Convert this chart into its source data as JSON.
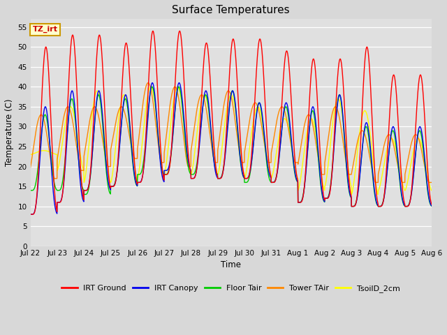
{
  "title": "Surface Temperatures",
  "ylabel": "Temperature (C)",
  "xlabel": "Time",
  "annotation": "TZ_irt",
  "ylim": [
    0,
    57
  ],
  "yticks": [
    0,
    5,
    10,
    15,
    20,
    25,
    30,
    35,
    40,
    45,
    50,
    55
  ],
  "fig_bg_color": "#d8d8d8",
  "plot_bg_color": "#e0e0e0",
  "legend": [
    {
      "label": "IRT Ground",
      "color": "#ff0000"
    },
    {
      "label": "IRT Canopy",
      "color": "#0000ee"
    },
    {
      "label": "Floor Tair",
      "color": "#00cc00"
    },
    {
      "label": "Tower TAir",
      "color": "#ff8800"
    },
    {
      "label": "TsoilD_2cm",
      "color": "#ffff00"
    }
  ],
  "num_days": 15,
  "tick_labels": [
    "Jul 22",
    "Jul 23",
    "Jul 24",
    "Jul 25",
    "Jul 26",
    "Jul 27",
    "Jul 28",
    "Jul 29",
    "Jul 30",
    "Jul 31",
    "Aug 1",
    "Aug 2",
    "Aug 3",
    "Aug 4",
    "Aug 5",
    "Aug 6"
  ],
  "irt_ground_peaks": [
    50,
    53,
    53,
    51,
    54,
    54,
    51,
    52,
    52,
    49,
    47,
    47,
    50,
    43,
    43
  ],
  "irt_ground_mins": [
    8,
    11,
    14,
    15,
    16,
    18,
    17,
    17,
    17,
    16,
    11,
    12,
    10,
    10,
    10
  ],
  "canopy_peaks": [
    35,
    39,
    39,
    38,
    41,
    41,
    39,
    39,
    36,
    36,
    35,
    38,
    31,
    30,
    30
  ],
  "canopy_mins": [
    8,
    11,
    14,
    15,
    16,
    19,
    17,
    17,
    17,
    16,
    11,
    12,
    10,
    10,
    10
  ],
  "floor_peaks": [
    33,
    37,
    38,
    37,
    40,
    40,
    38,
    39,
    36,
    35,
    34,
    38,
    30,
    29,
    29
  ],
  "floor_mins": [
    14,
    14,
    13,
    15,
    18,
    18,
    18,
    17,
    16,
    16,
    11,
    12,
    10,
    10,
    10
  ],
  "tower_peaks": [
    33,
    35,
    35,
    35,
    41,
    40,
    38,
    39,
    36,
    35,
    33,
    35,
    29,
    28,
    28
  ],
  "tower_mins": [
    17,
    19,
    20,
    22,
    21,
    20,
    21,
    21,
    21,
    21,
    18,
    18,
    16,
    16,
    16
  ],
  "soil_peaks": [
    24,
    35,
    39,
    38,
    40,
    40,
    38,
    38,
    35,
    32,
    32,
    37,
    34,
    27,
    27
  ],
  "soil_mins": [
    23,
    19,
    16,
    16,
    17,
    18,
    18,
    18,
    17,
    17,
    14,
    15,
    13,
    14,
    14
  ]
}
